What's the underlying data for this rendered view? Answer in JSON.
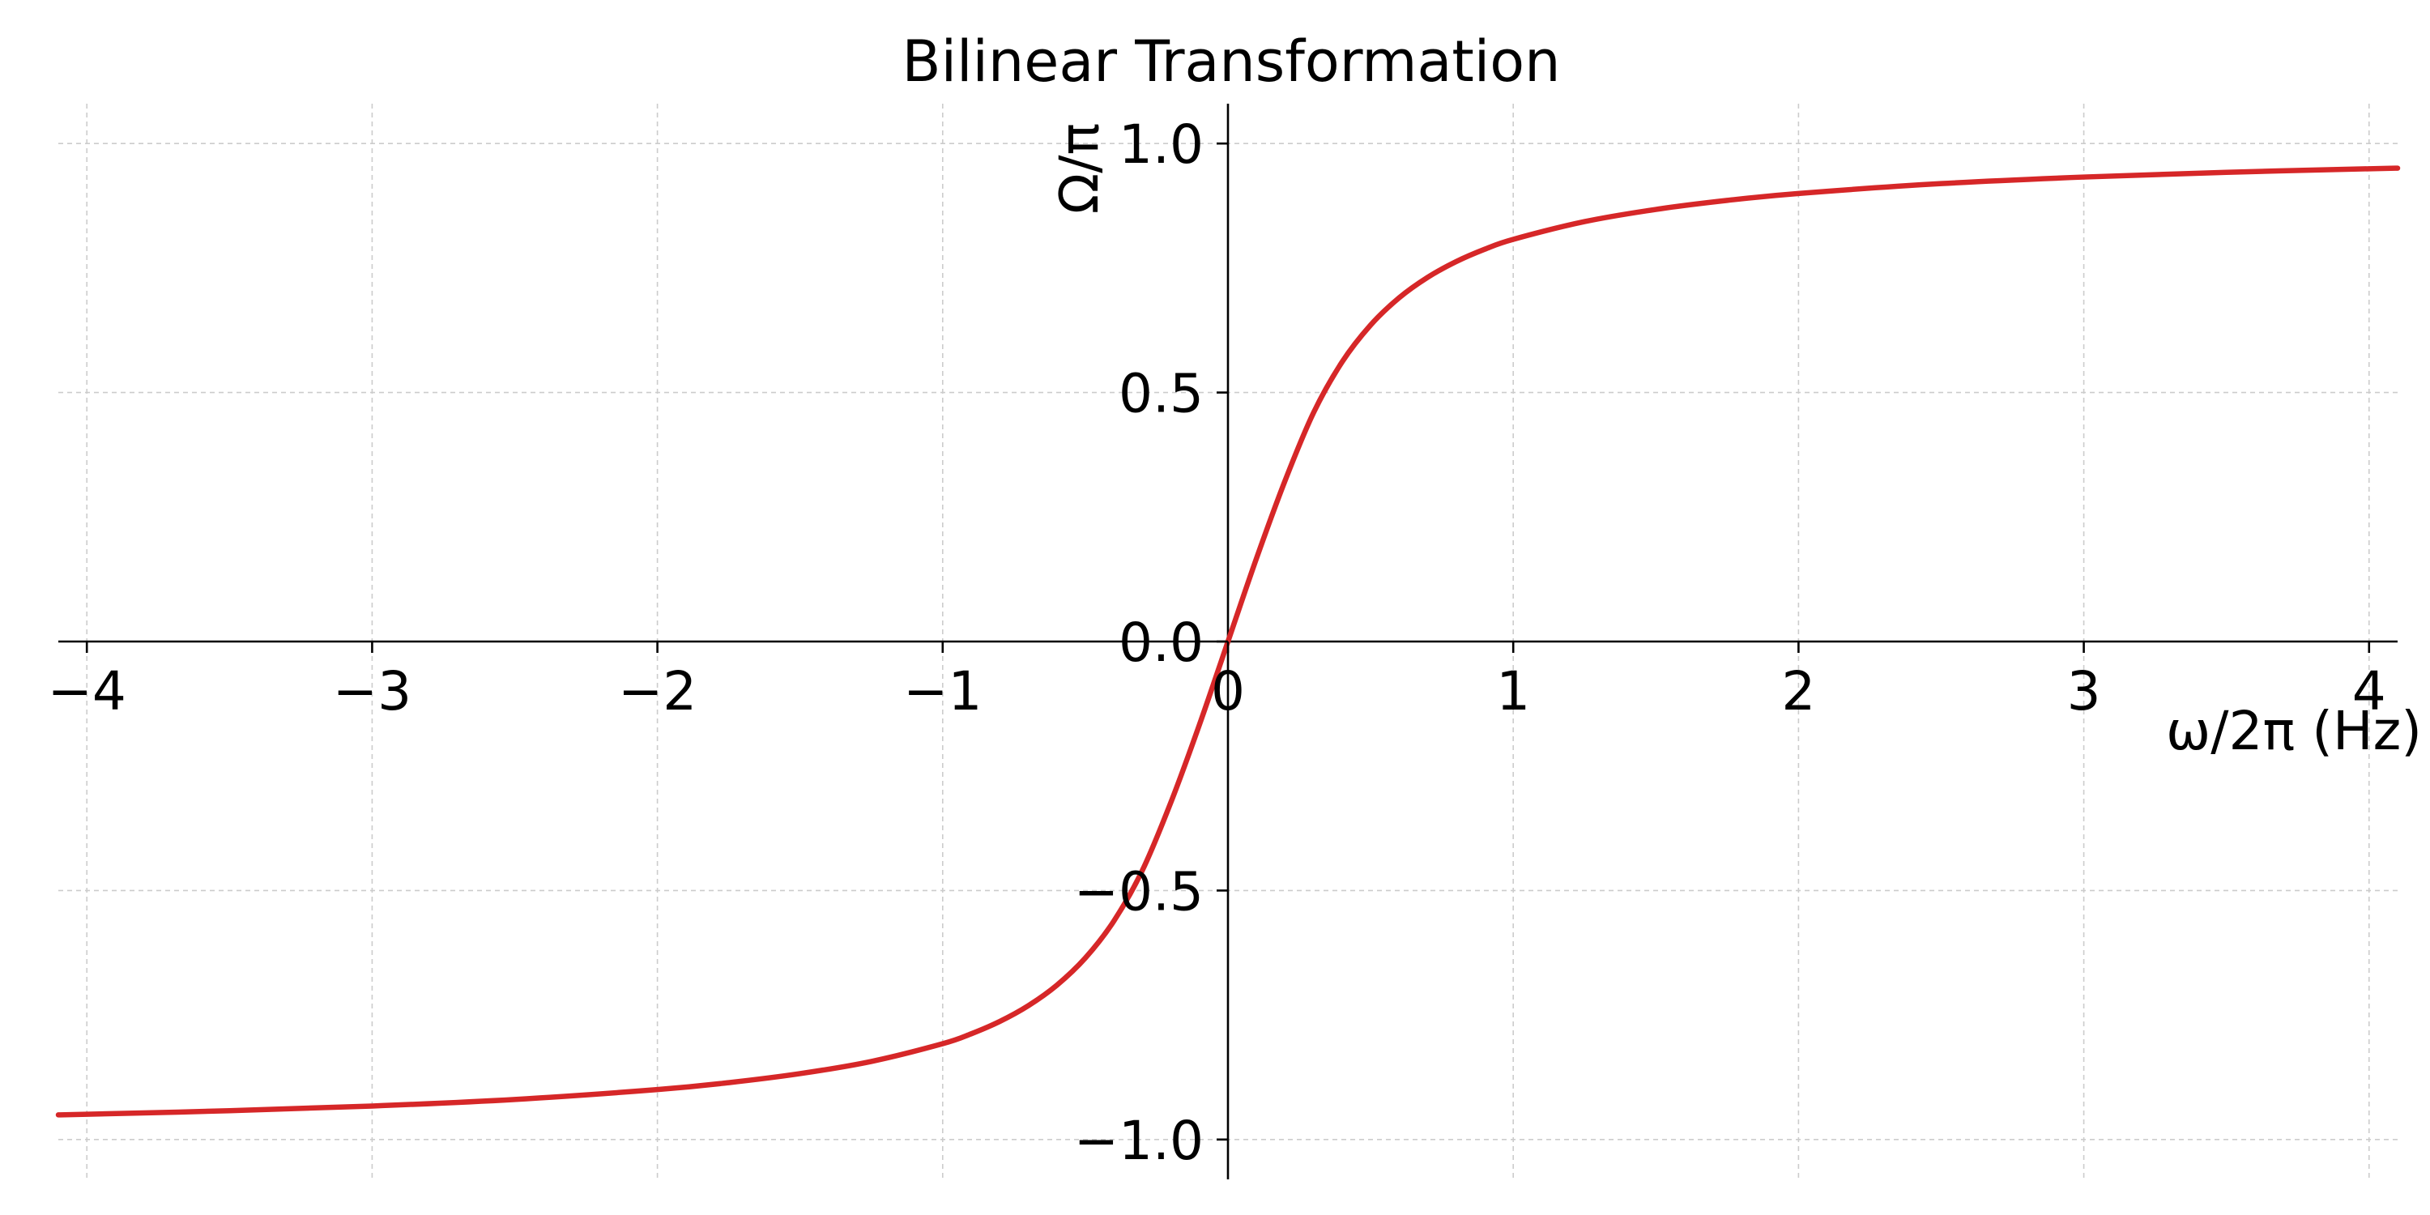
{
  "chart_data": {
    "type": "line",
    "title": "Bilinear Transformation",
    "xlabel": "ω/2π (Hz)",
    "ylabel": "Ω/π",
    "xlim": [
      -4.1,
      4.1
    ],
    "ylim": [
      -1.08,
      1.08
    ],
    "grid": true,
    "x_ticks": [
      -4,
      -3,
      -2,
      -1,
      0,
      1,
      2,
      3,
      4
    ],
    "x_tick_labels": [
      "−4",
      "−3",
      "−2",
      "−1",
      "0",
      "1",
      "2",
      "3",
      "4"
    ],
    "y_ticks": [
      -1.0,
      -0.5,
      0.0,
      0.5,
      1.0
    ],
    "y_tick_labels": [
      "−1.0",
      "−0.5",
      "0.0",
      "0.5",
      "1.0"
    ],
    "series": [
      {
        "name": "Ω/π",
        "color": "#d62728",
        "x": [
          -4.1,
          -4.0,
          -3.5,
          -3.0,
          -2.5,
          -2.0,
          -1.75,
          -1.5,
          -1.25,
          -1.0,
          -0.9,
          -0.8,
          -0.7,
          -0.6,
          -0.5,
          -0.4,
          -0.3,
          -0.2,
          -0.1,
          0.0,
          0.1,
          0.2,
          0.3,
          0.4,
          0.5,
          0.6,
          0.7,
          0.8,
          0.9,
          1.0,
          1.25,
          1.5,
          1.75,
          2.0,
          2.5,
          3.0,
          3.5,
          4.0,
          4.1
        ],
        "y": [
          -0.9505,
          -0.9493,
          -0.9422,
          -0.9327,
          -0.9195,
          -0.8997,
          -0.8858,
          -0.8677,
          -0.8432,
          -0.8076,
          -0.7877,
          -0.7629,
          -0.7313,
          -0.6902,
          -0.6355,
          -0.5613,
          -0.4595,
          -0.3228,
          -0.167,
          0.0,
          0.167,
          0.3228,
          0.4595,
          0.5613,
          0.6355,
          0.6902,
          0.7313,
          0.7629,
          0.7877,
          0.8076,
          0.8432,
          0.8677,
          0.8858,
          0.8997,
          0.9195,
          0.9327,
          0.9422,
          0.9493,
          0.9505
        ]
      }
    ]
  }
}
